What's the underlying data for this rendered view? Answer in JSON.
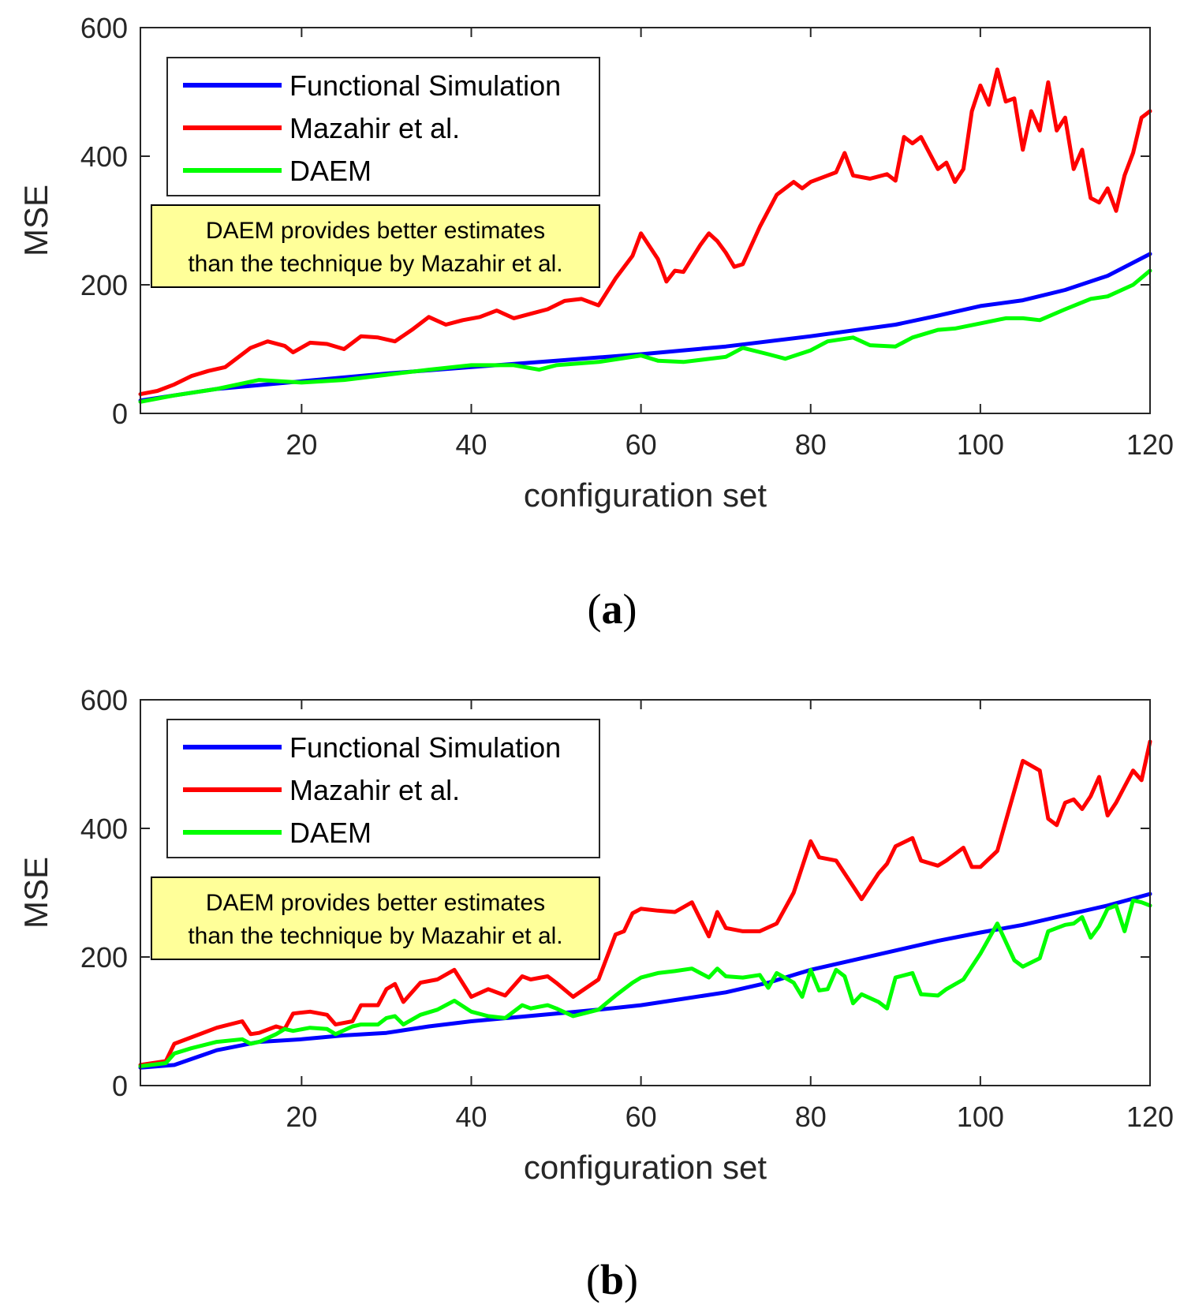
{
  "chart_data": [
    {
      "type": "line",
      "caption_letter": "a",
      "xlabel": "configuration set",
      "ylabel": "MSE",
      "xlim": [
        1,
        120
      ],
      "ylim": [
        0,
        600
      ],
      "xticks": [
        20,
        40,
        60,
        80,
        100,
        120
      ],
      "yticks": [
        0,
        200,
        400,
        600
      ],
      "legend_location": "top-left",
      "annotation": [
        "DAEM provides better estimates",
        "than the technique by Mazahir et al."
      ],
      "series": [
        {
          "name": "Functional Simulation",
          "color": "#0000ff",
          "x": [
            1,
            10,
            20,
            30,
            40,
            50,
            60,
            70,
            80,
            90,
            95,
            100,
            105,
            110,
            115,
            120
          ],
          "y": [
            20,
            38,
            50,
            62,
            72,
            82,
            92,
            104,
            120,
            138,
            152,
            167,
            176,
            192,
            214,
            248
          ]
        },
        {
          "name": "Mazahir et al.",
          "color": "#ff0000",
          "x": [
            1,
            3,
            5,
            7,
            9,
            11,
            13,
            14,
            16,
            18,
            19,
            21,
            23,
            25,
            27,
            29,
            31,
            33,
            35,
            37,
            39,
            41,
            43,
            45,
            47,
            49,
            51,
            53,
            55,
            57,
            59,
            60,
            61,
            62,
            63,
            64,
            65,
            67,
            68,
            69,
            70,
            71,
            72,
            74,
            76,
            78,
            79,
            80,
            82,
            83,
            84,
            85,
            87,
            89,
            90,
            91,
            92,
            93,
            95,
            96,
            97,
            98,
            99,
            100,
            101,
            102,
            103,
            104,
            105,
            106,
            107,
            108,
            109,
            110,
            111,
            112,
            113,
            114,
            115,
            116,
            117,
            118,
            119,
            120
          ],
          "y": [
            30,
            35,
            45,
            58,
            66,
            72,
            92,
            102,
            112,
            105,
            95,
            110,
            108,
            100,
            120,
            118,
            112,
            130,
            150,
            138,
            145,
            150,
            160,
            148,
            155,
            162,
            175,
            178,
            168,
            210,
            245,
            280,
            260,
            240,
            205,
            222,
            220,
            262,
            280,
            268,
            250,
            228,
            232,
            290,
            340,
            360,
            350,
            360,
            370,
            375,
            405,
            370,
            365,
            372,
            362,
            430,
            420,
            430,
            380,
            390,
            360,
            380,
            470,
            510,
            480,
            535,
            485,
            490,
            410,
            470,
            440,
            515,
            440,
            460,
            380,
            410,
            335,
            328,
            350,
            315,
            370,
            405,
            460,
            470
          ]
        },
        {
          "name": "DAEM",
          "color": "#00ff00",
          "x": [
            1,
            5,
            10,
            15,
            20,
            25,
            30,
            35,
            40,
            45,
            48,
            50,
            55,
            60,
            62,
            65,
            70,
            72,
            75,
            77,
            80,
            82,
            85,
            87,
            90,
            92,
            95,
            97,
            100,
            103,
            105,
            107,
            110,
            113,
            115,
            118,
            120
          ],
          "y": [
            18,
            28,
            38,
            52,
            48,
            52,
            60,
            68,
            75,
            75,
            68,
            75,
            80,
            90,
            82,
            80,
            88,
            102,
            92,
            85,
            98,
            112,
            118,
            106,
            104,
            118,
            130,
            132,
            140,
            148,
            148,
            145,
            162,
            178,
            182,
            200,
            222
          ]
        }
      ]
    },
    {
      "type": "line",
      "caption_letter": "b",
      "xlabel": "configuration set",
      "ylabel": "MSE",
      "xlim": [
        1,
        120
      ],
      "ylim": [
        0,
        600
      ],
      "xticks": [
        20,
        40,
        60,
        80,
        100,
        120
      ],
      "yticks": [
        0,
        200,
        400,
        600
      ],
      "legend_location": "top-left",
      "annotation": [
        "DAEM provides better estimates",
        "than the technique by Mazahir et al."
      ],
      "series": [
        {
          "name": "Functional Simulation",
          "color": "#0000ff",
          "x": [
            1,
            5,
            10,
            15,
            20,
            25,
            30,
            35,
            40,
            45,
            50,
            55,
            60,
            65,
            70,
            75,
            80,
            85,
            90,
            95,
            100,
            105,
            110,
            115,
            120
          ],
          "y": [
            28,
            32,
            55,
            68,
            72,
            78,
            82,
            92,
            100,
            106,
            112,
            118,
            125,
            135,
            145,
            160,
            180,
            195,
            210,
            225,
            238,
            250,
            265,
            280,
            298
          ]
        },
        {
          "name": "Mazahir et al.",
          "color": "#ff0000",
          "x": [
            1,
            4,
            5,
            7,
            10,
            13,
            14,
            15,
            17,
            18,
            19,
            21,
            23,
            24,
            26,
            27,
            29,
            30,
            31,
            32,
            34,
            36,
            38,
            40,
            42,
            44,
            46,
            47,
            49,
            50,
            52,
            55,
            57,
            58,
            59,
            60,
            62,
            64,
            66,
            68,
            69,
            70,
            72,
            74,
            76,
            78,
            80,
            81,
            83,
            85,
            86,
            88,
            89,
            90,
            92,
            93,
            95,
            96,
            98,
            99,
            100,
            102,
            104,
            105,
            107,
            108,
            109,
            110,
            111,
            112,
            113,
            114,
            115,
            116,
            117,
            118,
            119,
            120
          ],
          "y": [
            32,
            38,
            65,
            75,
            90,
            100,
            80,
            82,
            92,
            88,
            112,
            115,
            110,
            95,
            100,
            125,
            125,
            150,
            158,
            130,
            160,
            165,
            180,
            138,
            150,
            140,
            170,
            165,
            170,
            160,
            138,
            165,
            235,
            240,
            268,
            275,
            272,
            270,
            285,
            232,
            270,
            245,
            240,
            240,
            252,
            300,
            380,
            355,
            350,
            310,
            290,
            330,
            345,
            372,
            385,
            350,
            342,
            350,
            370,
            340,
            340,
            365,
            458,
            505,
            490,
            415,
            405,
            440,
            445,
            430,
            450,
            480,
            420,
            440,
            465,
            490,
            475,
            535
          ]
        },
        {
          "name": "DAEM",
          "color": "#00ff00",
          "x": [
            1,
            4,
            5,
            7,
            10,
            13,
            14,
            15,
            17,
            18,
            19,
            21,
            23,
            24,
            26,
            27,
            29,
            30,
            31,
            32,
            34,
            36,
            38,
            40,
            42,
            44,
            46,
            47,
            49,
            50,
            52,
            55,
            57,
            58,
            59,
            60,
            62,
            64,
            66,
            68,
            69,
            70,
            72,
            74,
            75,
            76,
            78,
            79,
            80,
            81,
            82,
            83,
            84,
            85,
            86,
            88,
            89,
            90,
            92,
            93,
            95,
            96,
            98,
            99,
            100,
            102,
            104,
            105,
            107,
            108,
            109,
            110,
            111,
            112,
            113,
            114,
            115,
            116,
            117,
            118,
            119,
            120
          ],
          "y": [
            30,
            35,
            50,
            58,
            68,
            72,
            65,
            68,
            80,
            88,
            85,
            90,
            88,
            80,
            92,
            95,
            95,
            105,
            108,
            95,
            110,
            118,
            132,
            115,
            108,
            105,
            125,
            120,
            125,
            120,
            108,
            118,
            140,
            150,
            160,
            168,
            175,
            178,
            182,
            168,
            182,
            170,
            168,
            172,
            152,
            175,
            160,
            138,
            180,
            148,
            150,
            180,
            170,
            128,
            142,
            130,
            120,
            168,
            175,
            142,
            140,
            150,
            165,
            185,
            205,
            252,
            195,
            185,
            198,
            240,
            245,
            250,
            252,
            262,
            230,
            248,
            275,
            280,
            240,
            288,
            285,
            280
          ]
        }
      ]
    }
  ]
}
